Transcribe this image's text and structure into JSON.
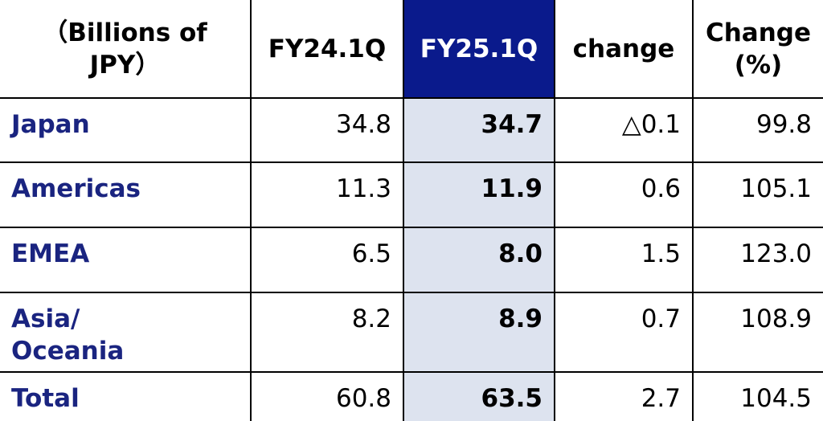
{
  "table": {
    "header": [
      "（Billions of\nJPY）",
      "FY24.1Q",
      "FY25.1Q",
      "change",
      "Change\n(%)"
    ],
    "rows": [
      [
        "Japan",
        "34.8",
        "34.7",
        "△0.1",
        "99.8"
      ],
      [
        "Americas",
        "11.3",
        "11.9",
        "0.6",
        "105.1"
      ],
      [
        "EMEA",
        "6.5",
        "8.0",
        "1.5",
        "123.0"
      ],
      [
        "Asia/\nOceania",
        "8.2",
        "8.9",
        "0.7",
        "108.9"
      ],
      [
        "Total",
        "60.8",
        "63.5",
        "2.7",
        "104.5"
      ]
    ]
  }
}
